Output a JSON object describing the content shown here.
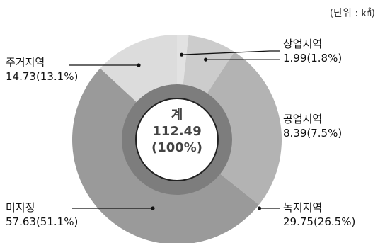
{
  "unit_note": "(단위 : ㎢)",
  "chart_data": {
    "type": "pie",
    "title": "",
    "unit": "㎢",
    "slices": [
      {
        "label": "상업지역",
        "value": 1.99,
        "percent": 1.8,
        "display": "1.99(1.8%)",
        "color": "#e2e2e2"
      },
      {
        "label": "공업지역",
        "value": 8.39,
        "percent": 7.5,
        "display": "8.39(7.5%)",
        "color": "#cccccc"
      },
      {
        "label": "녹지지역",
        "value": 29.75,
        "percent": 26.5,
        "display": "29.75(26.5%)",
        "color": "#b3b3b3"
      },
      {
        "label": "미지정",
        "value": 57.63,
        "percent": 51.1,
        "display": "57.63(51.1%)",
        "color": "#9a9a9a"
      },
      {
        "label": "주거지역",
        "value": 14.73,
        "percent": 13.1,
        "display": "14.73(13.1%)",
        "color": "#dcdcdc"
      }
    ],
    "total": {
      "label": "계",
      "value": "112.49",
      "percent": "(100%)"
    }
  }
}
